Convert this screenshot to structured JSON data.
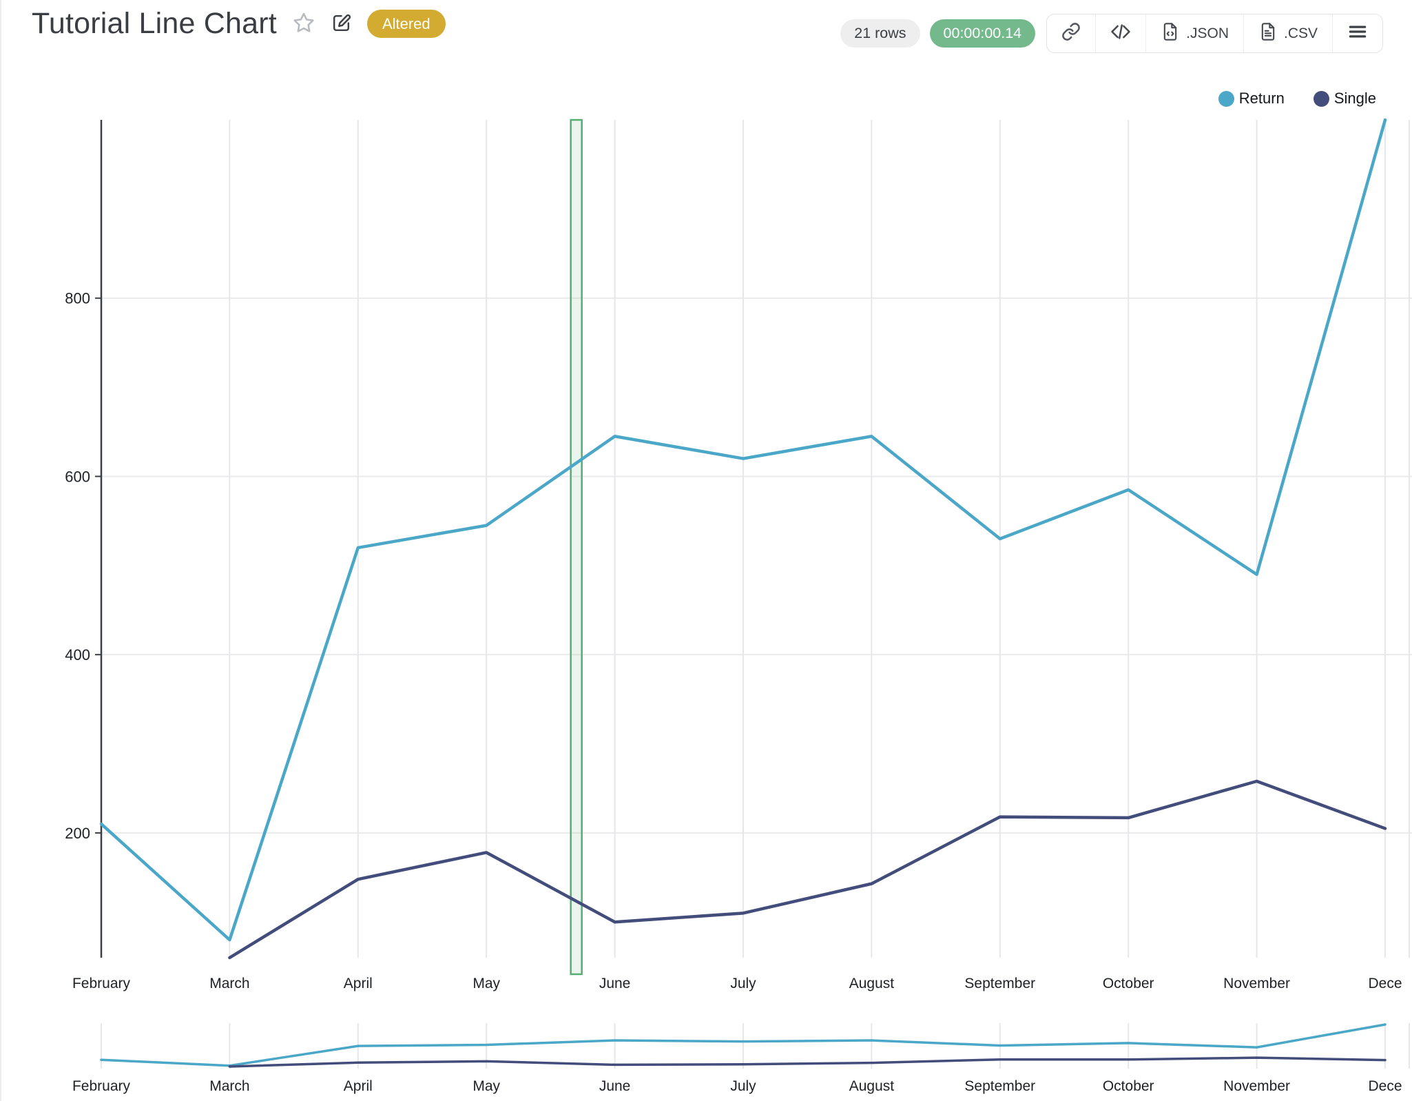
{
  "header": {
    "title": "Tutorial Line Chart",
    "altered_badge": "Altered",
    "rows_pill": "21 rows",
    "timer_pill": "00:00:00.14",
    "export_json_label": ".JSON",
    "export_csv_label": ".CSV"
  },
  "icons": {
    "favorite": "star-outline",
    "edit": "pencil-square",
    "share_link": "link",
    "embed": "code-brackets",
    "download_json": "file-code",
    "download_csv": "file-text",
    "menu": "hamburger"
  },
  "chart_data": {
    "type": "line",
    "title": "Tutorial Line Chart",
    "categories": [
      "February",
      "March",
      "April",
      "May",
      "June",
      "July",
      "August",
      "September",
      "October",
      "November",
      "December"
    ],
    "xtick_display": [
      "February",
      "March",
      "April",
      "May",
      "June",
      "July",
      "August",
      "September",
      "October",
      "November",
      "Dece"
    ],
    "series": [
      {
        "name": "Return",
        "color": "#4BA7C8",
        "values": [
          210,
          80,
          520,
          545,
          645,
          620,
          645,
          530,
          585,
          490,
          1000
        ]
      },
      {
        "name": "Single",
        "color": "#434D7B",
        "values": [
          null,
          60,
          148,
          178,
          100,
          110,
          143,
          218,
          217,
          258,
          205
        ]
      }
    ],
    "yticks": [
      200,
      400,
      600,
      800
    ],
    "ylim": [
      60,
      1000
    ],
    "xlabel": "",
    "ylabel": "",
    "grid": true,
    "legend_position": "top-right",
    "navigator": true,
    "annotation_band": {
      "between": [
        "May",
        "June"
      ],
      "offset_fraction": 0.7,
      "color": "#55ae72",
      "fill": "rgba(120,190,140,0.16)"
    },
    "axis_color": "#3b3e43",
    "gridline_color": "#e6e7e9",
    "tick_label_color": "#1e2125"
  }
}
